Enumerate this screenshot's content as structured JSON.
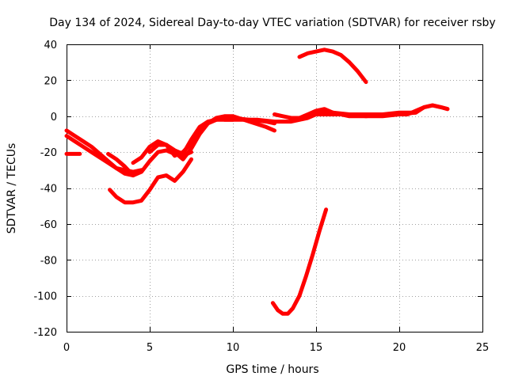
{
  "chart_data": {
    "type": "line",
    "title": "Day 134 of 2024, Sidereal Day-to-day VTEC variation (SDTVAR) for receiver rsby",
    "xlabel": "GPS time / hours",
    "ylabel": "SDTVAR / TECUs",
    "xlim": [
      0,
      25
    ],
    "ylim": [
      -120,
      40
    ],
    "xticks": [
      0,
      5,
      10,
      15,
      20,
      25
    ],
    "yticks": [
      -120,
      -100,
      -80,
      -60,
      -40,
      -20,
      0,
      20,
      40
    ],
    "grid": true,
    "color": "#ff0000",
    "series": [
      {
        "name": "arc-1",
        "x": [
          0,
          0.4,
          0.8
        ],
        "y": [
          -21,
          -21,
          -21
        ]
      },
      {
        "name": "arc-2",
        "x": [
          0,
          0.5,
          1,
          1.5,
          2,
          2.5,
          3,
          3.5,
          4
        ],
        "y": [
          -8,
          -11,
          -14,
          -17,
          -21,
          -25,
          -29,
          -32,
          -33
        ]
      },
      {
        "name": "arc-3",
        "x": [
          0,
          0.5,
          1,
          1.5,
          2,
          2.5,
          3,
          3.5,
          4,
          4.5
        ],
        "y": [
          -11,
          -14,
          -17,
          -20,
          -23,
          -26,
          -29,
          -30,
          -31,
          -30
        ]
      },
      {
        "name": "arc-4",
        "x": [
          2.5,
          3,
          3.5,
          4,
          4.5,
          5,
          5.5,
          6,
          6.5,
          7,
          7.5
        ],
        "y": [
          -21,
          -24,
          -28,
          -33,
          -31,
          -25,
          -20,
          -19,
          -21,
          -22,
          -20
        ]
      },
      {
        "name": "arc-5",
        "x": [
          2.6,
          3,
          3.5,
          4,
          4.5,
          5,
          5.5,
          6,
          6.5,
          7,
          7.5
        ],
        "y": [
          -41,
          -45,
          -48,
          -48,
          -47,
          -41,
          -34,
          -33,
          -36,
          -31,
          -24
        ]
      },
      {
        "name": "arc-6",
        "x": [
          4,
          4.5,
          5,
          5.5,
          6,
          6.5,
          7,
          7.5,
          8,
          8.5,
          9,
          9.5,
          10
        ],
        "y": [
          -26,
          -23,
          -17,
          -14,
          -16,
          -19,
          -21,
          -13,
          -6,
          -3,
          -2,
          -2,
          -2
        ]
      },
      {
        "name": "arc-7",
        "x": [
          5,
          5.5,
          6,
          6.5,
          7,
          7.5,
          8,
          8.5,
          9,
          9.5,
          10,
          11,
          12,
          12.5
        ],
        "y": [
          -20,
          -16,
          -16,
          -20,
          -24,
          -18,
          -10,
          -4,
          -2,
          -1,
          -1,
          -2,
          -3,
          -4
        ]
      },
      {
        "name": "arc-8",
        "x": [
          6,
          6.5,
          7,
          7.5,
          8,
          8.5,
          9,
          9.5,
          10,
          11,
          12,
          12.5
        ],
        "y": [
          -16,
          -22,
          -20,
          -15,
          -8,
          -4,
          -1,
          0,
          0,
          -3,
          -6,
          -8
        ]
      },
      {
        "name": "arc-9",
        "x": [
          9.5,
          10.5,
          11.5,
          12.5,
          13.5,
          14,
          14.5,
          15,
          15.5,
          16,
          17,
          18,
          19,
          20,
          20.5,
          21
        ],
        "y": [
          -2,
          -2,
          -2,
          -3,
          -3,
          -2,
          -1,
          1,
          1,
          1,
          1,
          1,
          1,
          2,
          2,
          2
        ]
      },
      {
        "name": "arc-10",
        "x": [
          12.5,
          13,
          13.5,
          14,
          14.5,
          15,
          15.5,
          16,
          16.5,
          17,
          18,
          19,
          20,
          21,
          21.5,
          22,
          22.5,
          22.9
        ],
        "y": [
          1,
          0,
          -1,
          -1,
          0,
          2,
          3,
          2,
          1,
          0,
          0,
          0,
          1,
          2,
          5,
          6,
          5,
          4
        ]
      },
      {
        "name": "arc-11",
        "x": [
          13.5,
          14,
          14.5,
          15,
          15.5,
          16,
          17,
          18,
          19,
          20,
          20.5,
          21,
          21.5,
          22,
          22.5,
          22.9
        ],
        "y": [
          -2,
          -1,
          1,
          3,
          4,
          2,
          1,
          0,
          1,
          1,
          1,
          3,
          5,
          6,
          5,
          4
        ]
      },
      {
        "name": "arc-12",
        "x": [
          14,
          14.5,
          15,
          15.5,
          16,
          16.5,
          17,
          17.5,
          18
        ],
        "y": [
          33,
          35,
          36,
          37,
          36,
          34,
          30,
          25,
          19
        ]
      },
      {
        "name": "arc-13",
        "x": [
          12.4,
          12.7,
          13,
          13.3,
          13.6,
          14,
          14.4,
          14.8,
          15.2,
          15.6
        ],
        "y": [
          -104,
          -108,
          -110,
          -110,
          -107,
          -100,
          -89,
          -77,
          -64,
          -52
        ]
      }
    ]
  }
}
